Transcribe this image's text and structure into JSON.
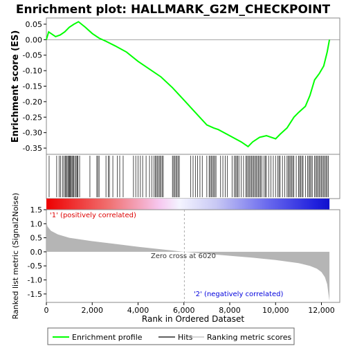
{
  "title": "Enrichment plot: HALLMARK_G2M_CHECKPOINT",
  "axes": {
    "es_ylabel": "Enrichment score (ES)",
    "metric_ylabel": "Ranked list metric (Signal2Noise)",
    "xlabel": "Rank in Ordered Dataset"
  },
  "annotations": {
    "positive": "'1' (positively correlated)",
    "negative": "'2' (negatively correlated)",
    "zero_cross": "Zero cross at 6020"
  },
  "legend": {
    "items": [
      {
        "label": "Enrichment profile",
        "color": "#00ff00"
      },
      {
        "label": "Hits",
        "color": "#000000"
      },
      {
        "label": "Ranking metric scores",
        "color": "#bbbbbb"
      }
    ]
  },
  "colors": {
    "es_line": "#00ff00",
    "hits": "#000000",
    "metric_fill": "#b5b5b5",
    "positive_text": "#dd0000",
    "negative_text": "#0000dd",
    "zero_line": "#888888",
    "frame": "#888888"
  },
  "chart_data": {
    "type": "line",
    "title": "Enrichment plot: HALLMARK_G2M_CHECKPOINT",
    "xlabel": "Rank in Ordered Dataset",
    "xlim": [
      0,
      12800
    ],
    "xticks": [
      0,
      2000,
      4000,
      6000,
      8000,
      10000,
      12000
    ],
    "xtick_labels": [
      "0",
      "2,000",
      "4,000",
      "6,000",
      "8,000",
      "10,000",
      "12,000"
    ],
    "n_genes": 12350,
    "zero_cross": 6020,
    "es": {
      "ylabel": "Enrichment score (ES)",
      "ylim": [
        -0.37,
        0.07
      ],
      "yticks": [
        0.05,
        0.0,
        -0.05,
        -0.1,
        -0.15,
        -0.2,
        -0.25,
        -0.3,
        -0.35
      ],
      "ytick_labels": [
        "0.05",
        "0.00",
        "-0.05",
        "-0.10",
        "-0.15",
        "-0.20",
        "-0.25",
        "-0.30",
        "-0.35"
      ],
      "x": [
        0,
        100,
        400,
        600,
        800,
        1000,
        1200,
        1400,
        1700,
        2000,
        2300,
        2600,
        3000,
        3500,
        4000,
        4500,
        5000,
        5500,
        6000,
        6500,
        7000,
        7300,
        7500,
        8000,
        8500,
        8800,
        9000,
        9300,
        9600,
        10000,
        10200,
        10500,
        10800,
        11000,
        11300,
        11500,
        11700,
        11900,
        12100,
        12250,
        12350
      ],
      "values": [
        0.0,
        0.025,
        0.01,
        0.015,
        0.025,
        0.04,
        0.05,
        0.058,
        0.04,
        0.02,
        0.005,
        -0.005,
        -0.02,
        -0.04,
        -0.07,
        -0.095,
        -0.12,
        -0.155,
        -0.195,
        -0.235,
        -0.275,
        -0.285,
        -0.29,
        -0.31,
        -0.33,
        -0.345,
        -0.33,
        -0.315,
        -0.31,
        -0.32,
        -0.305,
        -0.285,
        -0.25,
        -0.235,
        -0.215,
        -0.18,
        -0.13,
        -0.11,
        -0.085,
        -0.04,
        0.0
      ]
    },
    "metric": {
      "ylabel": "Ranked list metric (Signal2Noise)",
      "ylim": [
        -1.8,
        1.5
      ],
      "yticks": [
        1.5,
        1.0,
        0.5,
        0.0,
        -0.5,
        -1.0,
        -1.5
      ],
      "ytick_labels": [
        "1.5",
        "1.0",
        "0.5",
        "0.0",
        "-0.5",
        "-1.0",
        "-1.5"
      ],
      "x": [
        0,
        50,
        200,
        500,
        1000,
        2000,
        3000,
        4000,
        5000,
        6020,
        7000,
        8000,
        9000,
        10000,
        11000,
        11500,
        11800,
        12000,
        12150,
        12250,
        12300,
        12350
      ],
      "values": [
        1.05,
        0.9,
        0.75,
        0.62,
        0.5,
        0.38,
        0.28,
        0.18,
        0.09,
        0.0,
        -0.07,
        -0.14,
        -0.21,
        -0.29,
        -0.4,
        -0.5,
        -0.6,
        -0.72,
        -0.9,
        -1.15,
        -1.45,
        -1.75
      ]
    },
    "hits": [
      120,
      450,
      560,
      620,
      700,
      760,
      820,
      850,
      900,
      940,
      980,
      1010,
      1050,
      1080,
      1120,
      1160,
      1200,
      1250,
      1300,
      1340,
      1380,
      1450,
      1900,
      2200,
      2250,
      2300,
      2600,
      2700,
      2750,
      2900,
      3100,
      3200,
      3350,
      3800,
      3900,
      4000,
      4100,
      4200,
      4350,
      4500,
      4600,
      4700,
      4750,
      4800,
      4850,
      4900,
      4950,
      5000,
      5050,
      5100,
      5500,
      5550,
      5600,
      5650,
      5700,
      5750,
      5800,
      6300,
      6400,
      6500,
      6600,
      6700,
      6800,
      7000,
      7100,
      7150,
      7200,
      7250,
      7300,
      7350,
      7400,
      7600,
      7700,
      7800,
      7900,
      8100,
      8200,
      8250,
      8300,
      8350,
      8400,
      8500,
      8600,
      8700,
      8750,
      8800,
      8850,
      8900,
      8950,
      9000,
      9050,
      9100,
      9150,
      9200,
      9250,
      9300,
      9350,
      9400,
      9500,
      9550,
      9600,
      9700,
      9800,
      9900,
      10000,
      10100,
      10150,
      10200,
      10300,
      10400,
      10500,
      10550,
      10600,
      10650,
      10700,
      10750,
      10800,
      10900,
      11000,
      11050,
      11100,
      11150,
      11200,
      11300,
      11400,
      11450,
      11500,
      11550,
      11600,
      11700,
      11750,
      11800,
      11850,
      11900,
      11950,
      12000,
      12050,
      12100,
      12150,
      12200,
      12250,
      12300
    ]
  }
}
